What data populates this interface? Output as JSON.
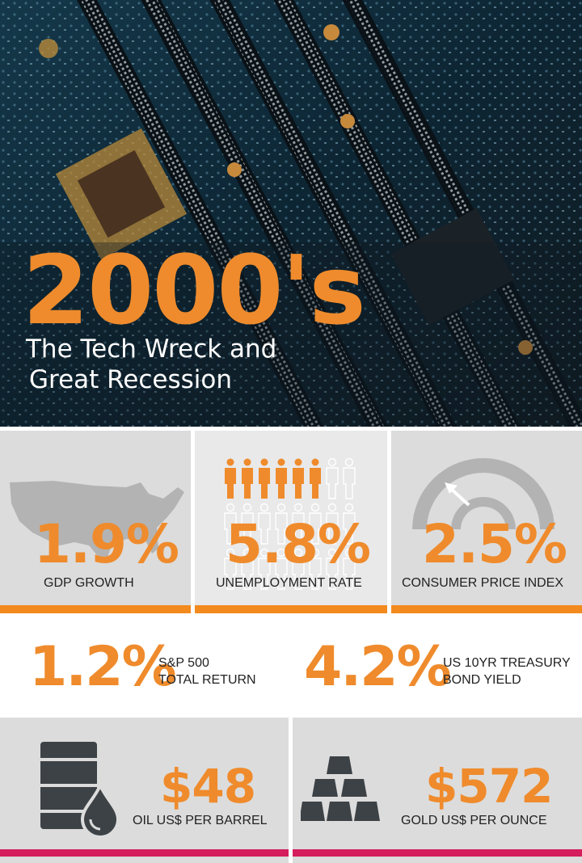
{
  "colors": {
    "accent": "#ef8b2c",
    "orange_bar": "#f28a1e",
    "pink_bar": "#d41e5d",
    "icon_dark": "#3d4246"
  },
  "hero": {
    "year": "2000's",
    "subtitle_line1": "The Tech Wreck and",
    "subtitle_line2": "Great Recession"
  },
  "stats_top": [
    {
      "value": "1.9%",
      "label": "GDP GROWTH",
      "icon": "usa-map-icon"
    },
    {
      "value": "5.8%",
      "label": "UNEMPLOYMENT RATE",
      "icon": "people-icon"
    },
    {
      "value": "2.5%",
      "label": "CONSUMER PRICE INDEX",
      "icon": "gauge-icon"
    }
  ],
  "stats_mid": [
    {
      "value": "1.2%",
      "label_line1": "S&P 500",
      "label_line2": "TOTAL RETURN"
    },
    {
      "value": "4.2%",
      "label_line1": "US 10YR TREASURY",
      "label_line2": "BOND YIELD"
    }
  ],
  "stats_bottom": [
    {
      "value": "$48",
      "label": "OIL US$ PER BARREL",
      "icon": "oil-barrel-icon"
    },
    {
      "value": "$572",
      "label": "GOLD US$ PER OUNCE",
      "icon": "gold-bars-icon"
    }
  ]
}
